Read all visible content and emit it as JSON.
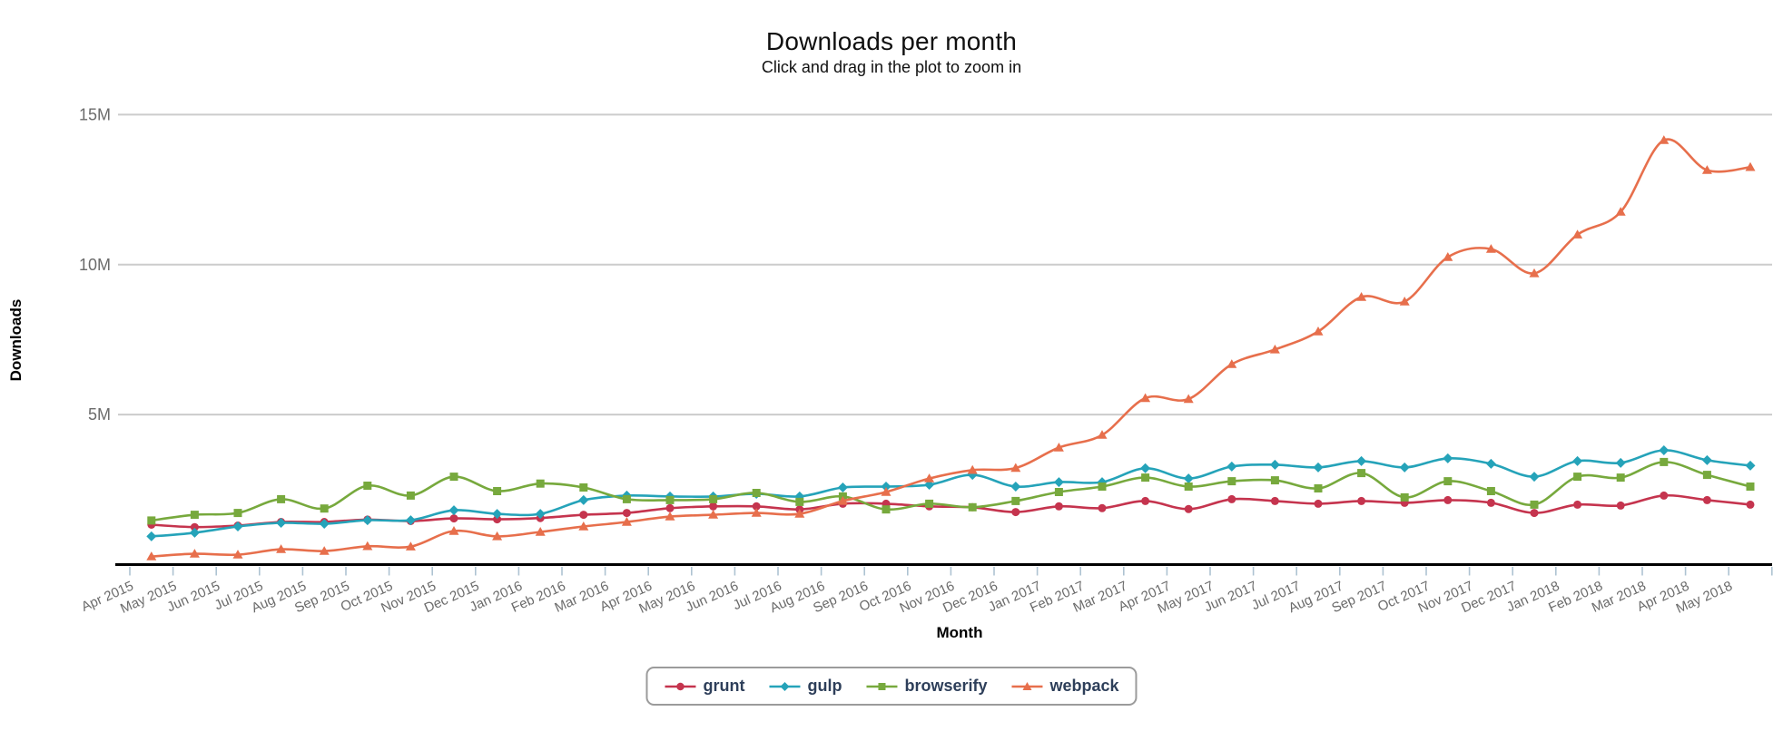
{
  "header": {
    "title": "Downloads per month",
    "subtitle": "Click and drag in the plot to zoom in"
  },
  "chart_data": {
    "type": "line",
    "title": "Downloads per month",
    "subtitle": "Click and drag in the plot to zoom in",
    "xlabel": "Month",
    "ylabel": "Downloads",
    "units": "millions of downloads",
    "x": [
      "Apr 2015",
      "May 2015",
      "Jun 2015",
      "Jul 2015",
      "Aug 2015",
      "Sep 2015",
      "Oct 2015",
      "Nov 2015",
      "Dec 2015",
      "Jan 2016",
      "Feb 2016",
      "Mar 2016",
      "Apr 2016",
      "May 2016",
      "Jun 2016",
      "Jul 2016",
      "Aug 2016",
      "Sep 2016",
      "Oct 2016",
      "Nov 2016",
      "Dec 2016",
      "Jan 2017",
      "Feb 2017",
      "Mar 2017",
      "Apr 2017",
      "May 2017",
      "Jun 2017",
      "Jul 2017",
      "Aug 2017",
      "Sep 2017",
      "Oct 2017",
      "Nov 2017",
      "Dec 2017",
      "Jan 2018",
      "Feb 2018",
      "Mar 2018",
      "Apr 2018",
      "May 2018"
    ],
    "ytick_labels": [
      "5M",
      "10M",
      "15M"
    ],
    "yticks": [
      5,
      10,
      15
    ],
    "ylim": [
      0,
      15.3
    ],
    "grid": "horizontal",
    "legend_position": "bottom-center",
    "series": [
      {
        "name": "grunt",
        "color": "#c5344e",
        "marker": "circle",
        "values": [
          1.33,
          1.25,
          1.3,
          1.42,
          1.42,
          1.5,
          1.45,
          1.54,
          1.51,
          1.55,
          1.66,
          1.72,
          1.88,
          1.94,
          1.94,
          1.84,
          2.03,
          2.03,
          1.94,
          1.91,
          1.75,
          1.94,
          1.88,
          2.12,
          1.85,
          2.18,
          2.12,
          2.03,
          2.12,
          2.06,
          2.15,
          2.06,
          1.72,
          2.0,
          1.97,
          2.3,
          2.15,
          2.0
        ]
      },
      {
        "name": "gulp",
        "color": "#25a3b9",
        "marker": "diamond",
        "values": [
          0.94,
          1.06,
          1.27,
          1.39,
          1.36,
          1.48,
          1.48,
          1.81,
          1.69,
          1.69,
          2.15,
          2.3,
          2.27,
          2.27,
          2.36,
          2.27,
          2.57,
          2.6,
          2.66,
          2.99,
          2.6,
          2.75,
          2.75,
          3.21,
          2.87,
          3.27,
          3.33,
          3.24,
          3.45,
          3.24,
          3.54,
          3.36,
          2.93,
          3.45,
          3.39,
          3.81,
          3.48,
          3.3
        ]
      },
      {
        "name": "browserify",
        "color": "#77a93d",
        "marker": "square",
        "values": [
          1.47,
          1.66,
          1.72,
          2.18,
          1.87,
          2.63,
          2.3,
          2.93,
          2.45,
          2.7,
          2.57,
          2.18,
          2.15,
          2.18,
          2.39,
          2.09,
          2.27,
          1.84,
          2.03,
          1.91,
          2.12,
          2.42,
          2.6,
          2.9,
          2.6,
          2.78,
          2.81,
          2.54,
          3.05,
          2.24,
          2.78,
          2.45,
          2.0,
          2.93,
          2.9,
          3.42,
          2.99,
          2.6
        ]
      },
      {
        "name": "webpack",
        "color": "#e76f4c",
        "marker": "triangle",
        "values": [
          0.27,
          0.36,
          0.33,
          0.51,
          0.45,
          0.61,
          0.6,
          1.12,
          0.94,
          1.09,
          1.27,
          1.42,
          1.6,
          1.66,
          1.72,
          1.69,
          2.12,
          2.42,
          2.87,
          3.15,
          3.22,
          3.9,
          4.32,
          5.55,
          5.52,
          6.68,
          7.17,
          7.77,
          8.92,
          8.77,
          10.25,
          10.52,
          9.71,
          11.0,
          11.76,
          14.15,
          13.15,
          13.25
        ]
      }
    ],
    "style": {
      "grid_color": "#cccccc",
      "axis_line_color": "#000000",
      "tick_mark_color": "#aec3d2",
      "axis_text_color": "#6b6b6b",
      "legend_text_color": "#2e3f5a"
    }
  }
}
